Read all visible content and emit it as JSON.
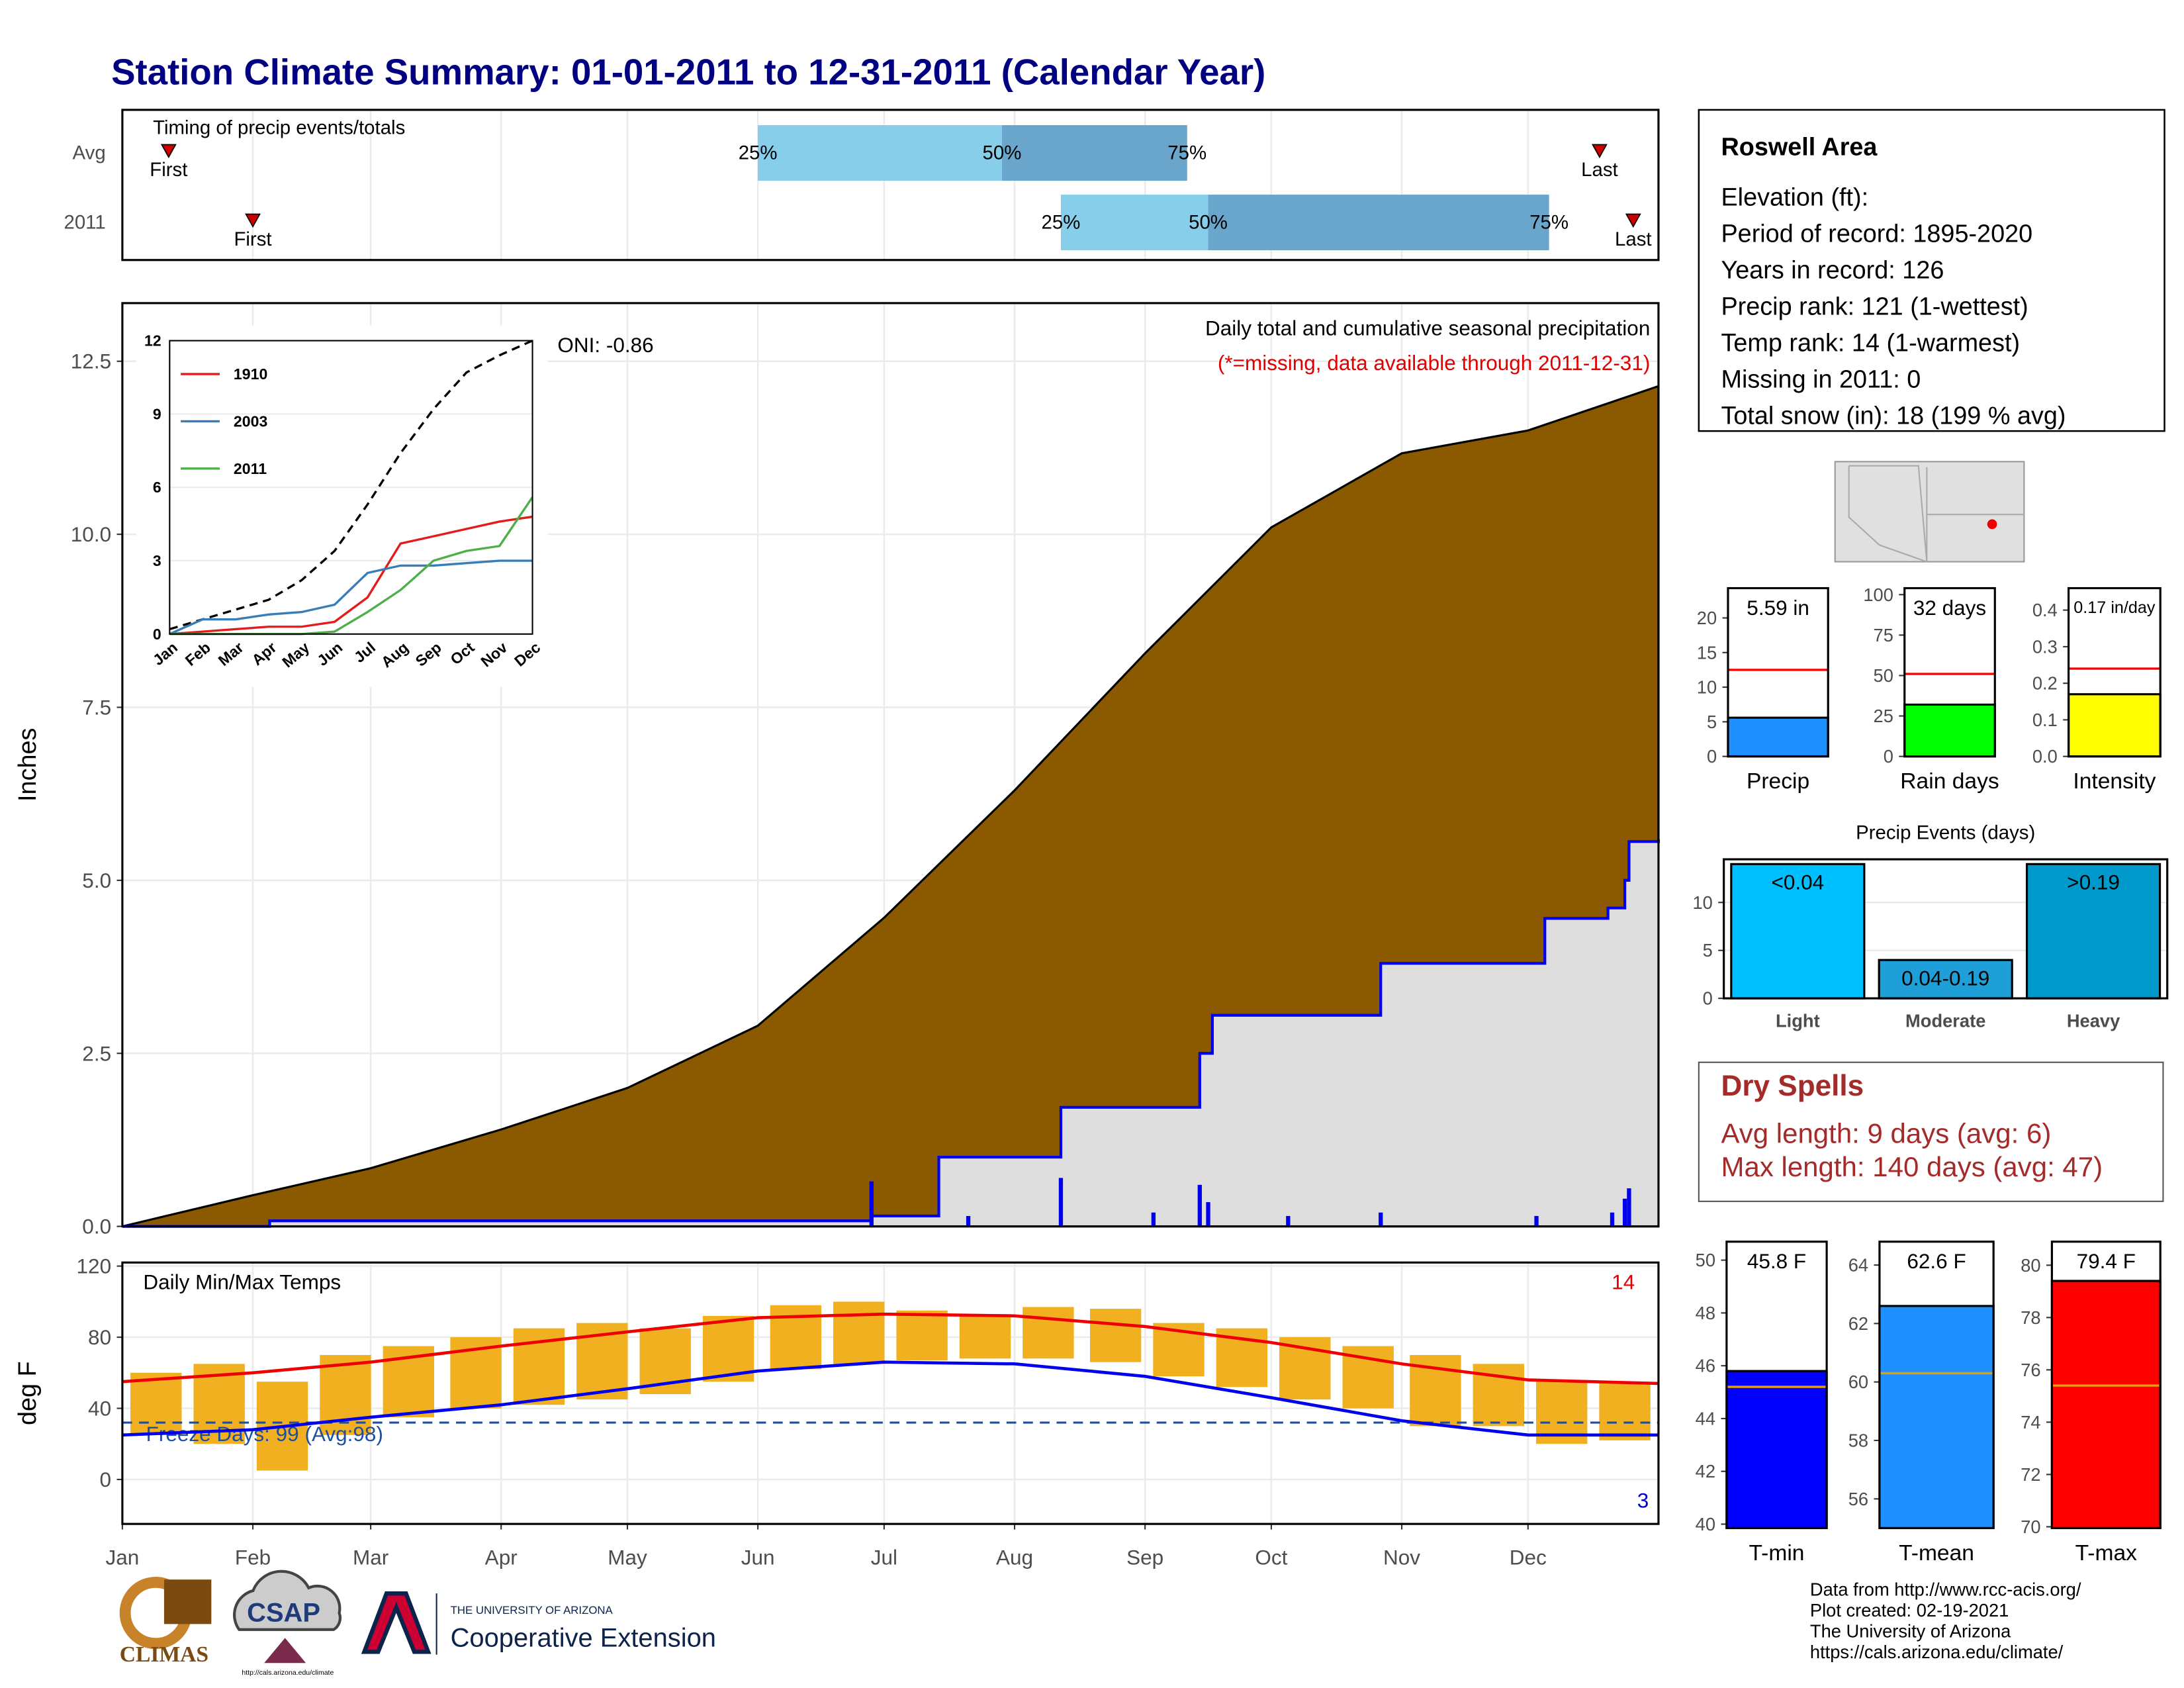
{
  "title": "Station Climate Summary: 01-01-2011 to 12-31-2011 (Calendar Year)",
  "chart_data": [
    {
      "type": "timing",
      "title": "Timing of precip events/totals",
      "categories": [
        "Avg",
        "2011"
      ],
      "xlim": [
        0,
        365
      ],
      "first": [
        11,
        31
      ],
      "q25": [
        151,
        223
      ],
      "q50": [
        209,
        258
      ],
      "q75": [
        253,
        339
      ],
      "last": [
        351,
        359
      ],
      "first_label": "First",
      "last_label": "Last",
      "quantile_labels": [
        "25%",
        "50%",
        "75%"
      ],
      "colors": [
        "#87ceeb",
        "#6aa6cc"
      ],
      "marker_color": "#cc0000"
    },
    {
      "type": "area",
      "title": "Daily total and cumulative seasonal precipitation",
      "subtitle": "(*=missing, data available through 2011-12-31)",
      "annotation": "ONI: -0.86",
      "ylabel": "Inches",
      "xlim": [
        0,
        365
      ],
      "ylim": [
        0,
        13.34
      ],
      "yticks": [
        {
          "value": 0,
          "label": "0.0"
        },
        2.5,
        {
          "value": 5,
          "label": "5.0"
        },
        7.5,
        {
          "value": 10,
          "label": "10.0"
        },
        12.5
      ],
      "grid": true,
      "series": [
        {
          "style": "area",
          "color": "#8b5a00",
          "x": [
            0,
            31,
            59,
            90,
            120,
            151,
            181,
            212,
            243,
            273,
            304,
            334,
            365
          ],
          "values": [
            0,
            0.45,
            0.84,
            1.4,
            2.0,
            2.9,
            4.46,
            6.3,
            8.28,
            10.1,
            11.17,
            11.5,
            12.14
          ]
        },
        {
          "style": "step",
          "color": "#0000ee",
          "fill": "#dedede",
          "x": [
            0,
            35,
            178,
            194,
            223,
            256,
            259,
            299,
            338,
            353,
            357,
            358,
            365
          ],
          "values": [
            0,
            0.08,
            0.15,
            1.0,
            1.72,
            2.5,
            3.05,
            3.8,
            4.45,
            4.6,
            5.0,
            5.56,
            5.59
          ]
        },
        {
          "style": "bar",
          "color": "#0000ee",
          "x": [
            178,
            201,
            223,
            245,
            256,
            258,
            277,
            299,
            336,
            354,
            357,
            358
          ],
          "values": [
            0.65,
            0.15,
            0.7,
            0.2,
            0.6,
            0.35,
            0.15,
            0.2,
            0.15,
            0.2,
            0.4,
            0.55
          ]
        }
      ]
    },
    {
      "type": "line",
      "categories": [
        "Jan",
        "Feb",
        "Mar",
        "Apr",
        "May",
        "Jun",
        "Jul",
        "Aug",
        "Sep",
        "Oct",
        "Nov",
        "Dec"
      ],
      "ylim": [
        0,
        12
      ],
      "yticks": [
        0,
        3,
        6,
        9,
        12
      ],
      "series": [
        {
          "color": "#000000",
          "dash": true,
          "values": [
            0.2,
            0.6,
            1.0,
            1.4,
            2.2,
            3.4,
            5.3,
            7.4,
            9.2,
            10.7,
            11.4,
            12.0
          ]
        },
        {
          "name": "1910",
          "color": "#e41a1c",
          "values": [
            0,
            0.1,
            0.2,
            0.3,
            0.3,
            0.5,
            1.5,
            3.7,
            4.0,
            4.3,
            4.6,
            4.8
          ]
        },
        {
          "name": "2003",
          "color": "#377eb8",
          "values": [
            0,
            0.6,
            0.6,
            0.8,
            0.9,
            1.2,
            2.5,
            2.8,
            2.8,
            2.9,
            3.0,
            3.0
          ]
        },
        {
          "name": "2011",
          "color": "#4daf4a",
          "values": [
            0,
            0,
            0,
            0,
            0,
            0.1,
            0.9,
            1.8,
            3.0,
            3.4,
            3.6,
            5.6
          ]
        }
      ]
    },
    {
      "type": "range",
      "title": "Daily Min/Max Temps",
      "ylabel": "deg F",
      "xlim": [
        0,
        365
      ],
      "ylim": [
        -25,
        122
      ],
      "xticks": [
        {
          "value": 0,
          "label": "Jan"
        },
        {
          "value": 31,
          "label": "Feb"
        },
        {
          "value": 59,
          "label": "Mar"
        },
        {
          "value": 90,
          "label": "Apr"
        },
        {
          "value": 120,
          "label": "May"
        },
        {
          "value": 151,
          "label": "Jun"
        },
        {
          "value": 181,
          "label": "Jul"
        },
        {
          "value": 212,
          "label": "Aug"
        },
        {
          "value": 243,
          "label": "Sep"
        },
        {
          "value": 273,
          "label": "Oct"
        },
        {
          "value": 304,
          "label": "Nov"
        },
        {
          "value": 334,
          "label": "Dec"
        }
      ],
      "yticks": [
        0,
        40,
        80,
        120
      ],
      "grid": true,
      "hline": 32,
      "hline_label": "Freeze Days: 99 (Avg:98)",
      "hline_color": "#1f4e9e",
      "record_high_count": "14",
      "record_low_count": "3",
      "bars": {
        "color": "#f0b020",
        "x": [
          8,
          23,
          38,
          53,
          68,
          84,
          99,
          114,
          129,
          144,
          160,
          175,
          190,
          205,
          220,
          236,
          251,
          266,
          281,
          296,
          312,
          327,
          342,
          357
        ],
        "low": [
          25,
          20,
          5,
          25,
          35,
          40,
          42,
          45,
          48,
          55,
          62,
          65,
          67,
          68,
          68,
          66,
          58,
          52,
          45,
          40,
          30,
          30,
          20,
          22
        ],
        "high": [
          60,
          65,
          55,
          70,
          75,
          80,
          85,
          88,
          85,
          92,
          98,
          100,
          95,
          93,
          97,
          96,
          88,
          85,
          80,
          75,
          70,
          65,
          55,
          55
        ]
      },
      "series": [
        {
          "color": "#ee0000",
          "x": [
            0,
            31,
            59,
            90,
            120,
            151,
            181,
            212,
            243,
            273,
            304,
            334,
            365
          ],
          "values": [
            55,
            60,
            66,
            75,
            83,
            91,
            93,
            92,
            86,
            77,
            65,
            56,
            54
          ]
        },
        {
          "color": "#0000ee",
          "x": [
            0,
            31,
            59,
            90,
            120,
            151,
            181,
            212,
            243,
            273,
            304,
            334,
            365
          ],
          "values": [
            25,
            28,
            35,
            42,
            51,
            61,
            66,
            65,
            58,
            46,
            33,
            25,
            25
          ]
        }
      ]
    },
    {
      "type": "bar",
      "categories": [
        "Precip"
      ],
      "values": [
        5.59
      ],
      "value_labels": [
        "5.59 in"
      ],
      "avg": 12.5,
      "color": "#1e90ff",
      "ylim": [
        0,
        24.3
      ],
      "yticks": [
        0,
        5,
        10,
        15,
        20
      ]
    },
    {
      "type": "bar",
      "categories": [
        "Rain days"
      ],
      "values": [
        32
      ],
      "value_labels": [
        "32 days"
      ],
      "avg": 51,
      "color": "#00ff00",
      "ylim": [
        0,
        104
      ],
      "yticks": [
        0,
        25,
        50,
        75,
        100
      ]
    },
    {
      "type": "bar",
      "categories": [
        "Intensity"
      ],
      "values": [
        0.17
      ],
      "value_labels": [
        "0.17 in/day"
      ],
      "avg": 0.24,
      "color": "#ffff00",
      "ylim": [
        0,
        0.46
      ],
      "yticks": [
        {
          "value": 0,
          "label": "0.0"
        },
        0.1,
        0.2,
        0.3,
        0.4
      ]
    },
    {
      "type": "bar",
      "title": "Precip Events (days)",
      "categories": [
        "Light",
        "Moderate",
        "Heavy"
      ],
      "values": [
        14,
        4,
        14
      ],
      "bin_labels": [
        "<0.04",
        "0.04-0.19",
        ">0.19"
      ],
      "colors": [
        "#00bfff",
        "#1e9fd8",
        "#0099cc"
      ],
      "ylim": [
        0,
        14.5
      ],
      "yticks": [
        0,
        5,
        10
      ],
      "grid": true
    },
    {
      "type": "bar",
      "categories": [
        "T-min"
      ],
      "values": [
        45.8
      ],
      "value_labels": [
        "45.8 F"
      ],
      "avg": 45.2,
      "color": "#0000ff",
      "ylim": [
        39.85,
        50.7
      ],
      "yticks": [
        40,
        42,
        44,
        46,
        48,
        50
      ]
    },
    {
      "type": "bar",
      "categories": [
        "T-mean"
      ],
      "values": [
        62.6
      ],
      "value_labels": [
        "62.6 F"
      ],
      "avg": 60.3,
      "color": "#1e90ff",
      "ylim": [
        55,
        64.8
      ],
      "yticks": [
        56,
        58,
        60,
        62,
        64
      ]
    },
    {
      "type": "bar",
      "categories": [
        "T-max"
      ],
      "values": [
        79.4
      ],
      "value_labels": [
        "79.4 F"
      ],
      "avg": 75.4,
      "color": "#ff0000",
      "ylim": [
        69.95,
        80.9
      ],
      "yticks": [
        70,
        72,
        74,
        76,
        78,
        80
      ]
    }
  ],
  "station": {
    "name": "Roswell Area",
    "lines": [
      "Elevation (ft):",
      "Period of record: 1895-2020",
      "Years in record: 126",
      "Precip rank: 121 (1-wettest)",
      "Temp rank: 14 (1-warmest)",
      "Missing in 2011: 0",
      "Total snow (in): 18 (199 % avg)"
    ]
  },
  "dry_spells": {
    "title": "Dry Spells",
    "lines": [
      "Avg length: 9 days (avg: 6)",
      "Max length: 140 days (avg: 47)"
    ]
  },
  "footer": {
    "lines": [
      "Data from http://www.rcc-acis.org/",
      "Plot created: 02-19-2021",
      "The University of Arizona",
      "https://cals.arizona.edu/climate/"
    ]
  },
  "logos": {
    "climas": "CLIMAS",
    "csap": "CSAP",
    "csap_url": "http://cals.arizona.edu/climate",
    "ua_small": "THE UNIVERSITY OF ARIZONA",
    "ua_big": "Cooperative Extension"
  }
}
